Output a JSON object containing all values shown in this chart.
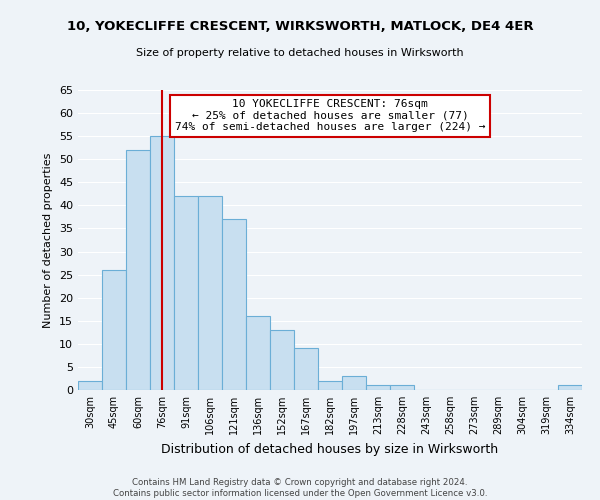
{
  "title": "10, YOKECLIFFE CRESCENT, WIRKSWORTH, MATLOCK, DE4 4ER",
  "subtitle": "Size of property relative to detached houses in Wirksworth",
  "xlabel": "Distribution of detached houses by size in Wirksworth",
  "ylabel": "Number of detached properties",
  "bin_labels": [
    "30sqm",
    "45sqm",
    "60sqm",
    "76sqm",
    "91sqm",
    "106sqm",
    "121sqm",
    "136sqm",
    "152sqm",
    "167sqm",
    "182sqm",
    "197sqm",
    "213sqm",
    "228sqm",
    "243sqm",
    "258sqm",
    "273sqm",
    "289sqm",
    "304sqm",
    "319sqm",
    "334sqm"
  ],
  "bar_values": [
    2,
    26,
    52,
    55,
    42,
    42,
    37,
    16,
    13,
    9,
    2,
    3,
    1,
    1,
    0,
    0,
    0,
    0,
    0,
    0,
    1
  ],
  "bar_color": "#c8dff0",
  "bar_edge_color": "#6baed6",
  "highlight_bin_index": 3,
  "ylim": [
    0,
    65
  ],
  "yticks": [
    0,
    5,
    10,
    15,
    20,
    25,
    30,
    35,
    40,
    45,
    50,
    55,
    60,
    65
  ],
  "annotation_title": "10 YOKECLIFFE CRESCENT: 76sqm",
  "annotation_line1": "← 25% of detached houses are smaller (77)",
  "annotation_line2": "74% of semi-detached houses are larger (224) →",
  "annotation_box_color": "#ffffff",
  "annotation_box_edge": "#cc0000",
  "red_line_color": "#cc0000",
  "footer_line1": "Contains HM Land Registry data © Crown copyright and database right 2024.",
  "footer_line2": "Contains public sector information licensed under the Open Government Licence v3.0.",
  "background_color": "#eef3f8",
  "grid_color": "#ffffff"
}
